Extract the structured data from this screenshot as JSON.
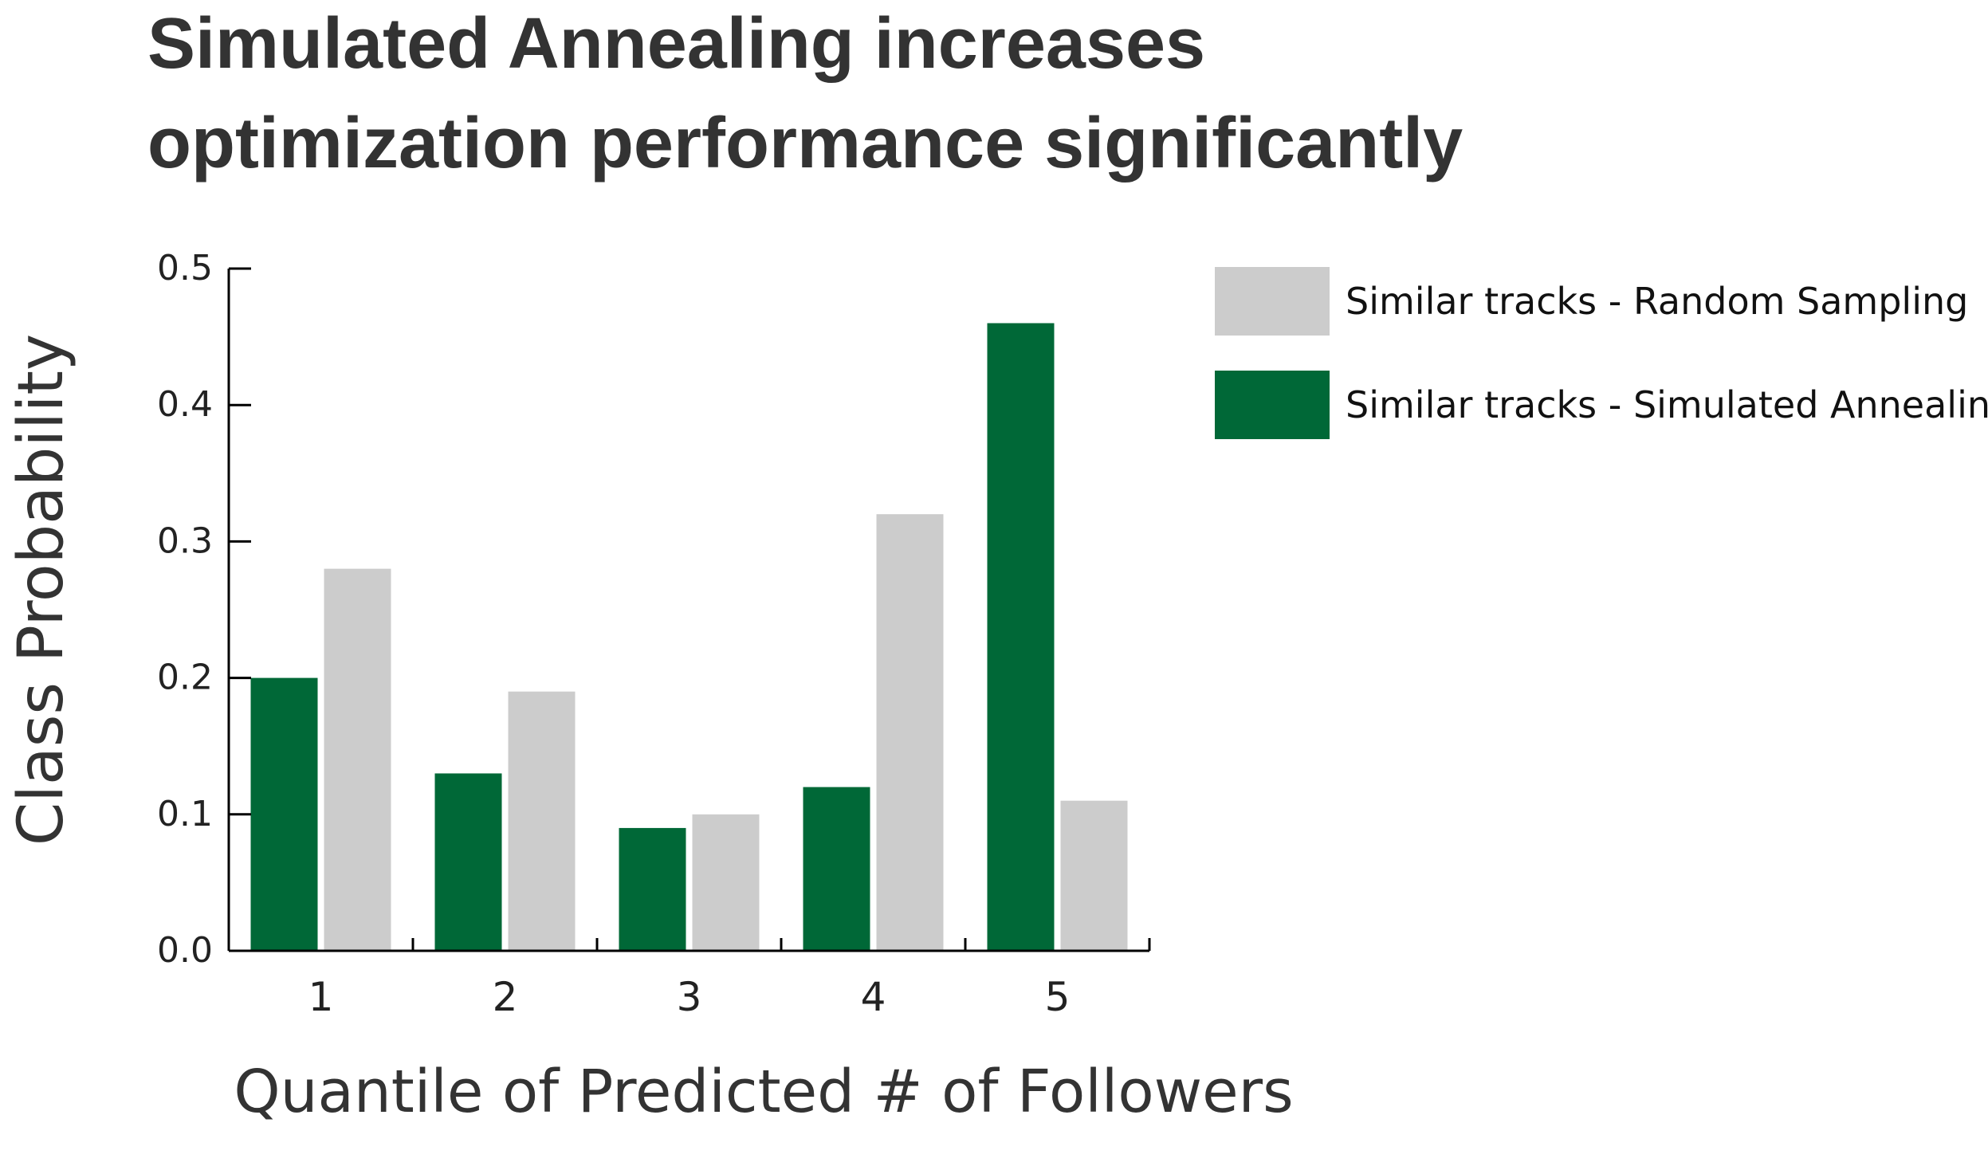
{
  "chart_data": {
    "type": "bar",
    "title_lines": [
      "Simulated Annealing increases",
      "optimization performance significantly"
    ],
    "xlabel": "Quantile of Predicted # of Followers",
    "ylabel": "Class Probability",
    "categories": [
      "1",
      "2",
      "3",
      "4",
      "5"
    ],
    "yticks": [
      "0.0",
      "0.1",
      "0.2",
      "0.3",
      "0.4",
      "0.5"
    ],
    "ylim": [
      0,
      0.5
    ],
    "grid": false,
    "legend_position": "top-right",
    "series": [
      {
        "name": "Similar tracks - Simulated Annealing",
        "color": "#006837",
        "values": [
          0.2,
          0.13,
          0.09,
          0.12,
          0.46
        ]
      },
      {
        "name": "Similar tracks - Random Sampling",
        "color": "#cccccc",
        "values": [
          0.28,
          0.19,
          0.1,
          0.32,
          0.11
        ]
      }
    ],
    "legend_order": [
      1,
      0
    ]
  }
}
